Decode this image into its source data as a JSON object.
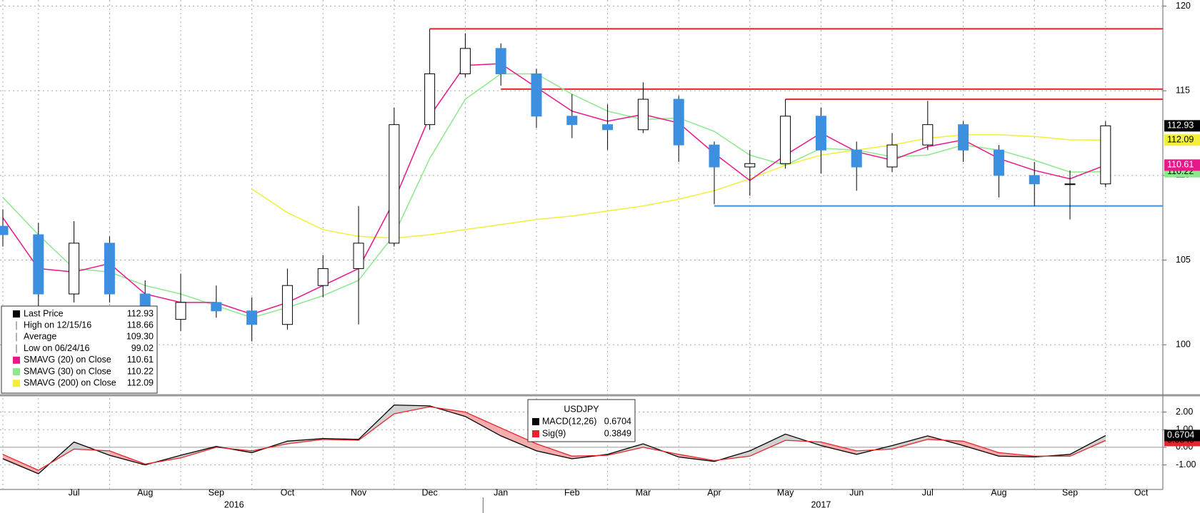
{
  "chart_data": [
    {
      "type": "candlestick",
      "categories": [
        null,
        null,
        "Jul",
        null,
        "Aug",
        null,
        "Sep",
        null,
        "Oct",
        null,
        "Nov",
        null,
        "Dec",
        null,
        "Jan",
        null,
        "Feb",
        null,
        "Mar",
        null,
        "Apr",
        null,
        "May",
        null,
        "Jun",
        null,
        "Jul",
        null,
        "Aug",
        null,
        "Sep",
        null,
        "Oct"
      ],
      "x_groups": [
        {
          "name": "2016",
          "count": 14
        },
        {
          "name": "2017",
          "count": 19
        }
      ],
      "candles": {
        "open": [
          107,
          106.5,
          103,
          106,
          103,
          101.5,
          102.5,
          102,
          101.2,
          103.5,
          104.5,
          106,
          113,
          116,
          117.5,
          116,
          113.5,
          113,
          112.7,
          114.5,
          111.8,
          110.5,
          110.7,
          113.5,
          111.5,
          110.5,
          111.8,
          113,
          111.5,
          110,
          109.5,
          109.5,
          null
        ],
        "high": [
          108,
          107.2,
          107.3,
          106.4,
          103.8,
          104.2,
          103.5,
          102.8,
          104.5,
          105.3,
          108.2,
          114,
          118.66,
          118.4,
          117.8,
          116.3,
          114.8,
          114.2,
          115.5,
          114.7,
          112,
          111.5,
          114.5,
          114,
          112,
          112.5,
          114.4,
          113.2,
          111.8,
          110.8,
          110.3,
          113.2,
          null
        ],
        "low": [
          105.8,
          99.02,
          102.5,
          102.5,
          100.5,
          100.8,
          101.6,
          100.2,
          100.9,
          102.8,
          101.2,
          105.8,
          112.7,
          115.8,
          115.3,
          112.8,
          112.2,
          111.5,
          112.5,
          110.8,
          108.3,
          108.8,
          110.4,
          110.1,
          109.1,
          110.2,
          111.5,
          110.8,
          108.7,
          108.2,
          107.4,
          109.3,
          null
        ],
        "close": [
          106.5,
          103,
          106,
          103,
          101.5,
          102.5,
          102,
          101.2,
          103.5,
          104.5,
          106,
          113,
          116,
          117.5,
          116,
          113.5,
          113,
          112.7,
          114.5,
          111.8,
          110.5,
          110.7,
          113.5,
          111.5,
          110.5,
          111.8,
          113,
          111.5,
          110,
          109.5,
          109.5,
          112.93,
          null
        ],
        "up_color": "#ffffff",
        "down_color": "#3d8fe0"
      },
      "series": [
        {
          "name": "SMAVG (20) on Close",
          "color": "#e8178a",
          "values": [
            107.5,
            104.5,
            104.3,
            104.8,
            103,
            102.5,
            102.5,
            101.8,
            102.5,
            103.5,
            104.5,
            108.5,
            113.5,
            116.5,
            116.6,
            115.2,
            113.8,
            113.2,
            113.6,
            113.1,
            111.3,
            109.7,
            111.2,
            112.5,
            111.4,
            110.9,
            111.7,
            112.1,
            111,
            110.3,
            109.8,
            110.61,
            null
          ]
        },
        {
          "name": "SMAVG (30) on Close",
          "color": "#8de88d",
          "values": [
            108.7,
            106.5,
            104.5,
            104.3,
            103.5,
            103,
            102.3,
            101.6,
            102.2,
            102.9,
            103.8,
            106.5,
            111,
            114.5,
            116,
            116,
            114.8,
            113.8,
            113.3,
            113.4,
            112.6,
            111.2,
            110.6,
            111.6,
            111.5,
            111.1,
            111.2,
            111.8,
            111.5,
            110.9,
            110.2,
            110.22,
            null
          ]
        },
        {
          "name": "SMAVG (200) on Close",
          "color": "#f2ef3a",
          "values": [
            null,
            null,
            null,
            null,
            null,
            null,
            null,
            109.2,
            107.8,
            106.8,
            106.4,
            106.3,
            106.5,
            106.8,
            107.1,
            107.4,
            107.6,
            107.9,
            108.2,
            108.6,
            109.1,
            109.8,
            110.6,
            111.2,
            111.5,
            111.8,
            112.2,
            112.4,
            112.4,
            112.3,
            112.1,
            112.09,
            null
          ]
        }
      ],
      "stats": {
        "last": "Last Price",
        "high": "High on 12/15/16",
        "average": "Average",
        "low": "Low on 06/24/16"
      },
      "average": {
        "value": 109.3,
        "label": "109.30"
      },
      "levels": [
        {
          "value": 118.66,
          "from": 12,
          "color": "#e8242b"
        },
        {
          "value": 115.1,
          "from": 14,
          "color": "#e8242b"
        },
        {
          "value": 114.5,
          "from": 22,
          "color": "#e8242b"
        },
        {
          "value": 108.2,
          "from": 20,
          "color": "#3d8fe0"
        }
      ],
      "ylim": [
        97.06,
        120.36
      ],
      "yticks": [
        100,
        105,
        110,
        115,
        120
      ],
      "grid": true
    },
    {
      "type": "macd",
      "title": "USDJPY",
      "series": [
        {
          "name": "MACD(12,26)",
          "color": "#000000",
          "values": [
            -0.65,
            -1.5,
            0.3,
            -0.45,
            -1,
            -0.45,
            0.05,
            -0.3,
            0.35,
            0.5,
            0.45,
            2.4,
            2.35,
            1.75,
            0.65,
            -0.2,
            -0.65,
            -0.4,
            0.2,
            -0.55,
            -0.8,
            -0.2,
            0.75,
            0.1,
            -0.4,
            0.1,
            0.65,
            0.1,
            -0.5,
            -0.55,
            -0.4,
            0.6704,
            null
          ]
        },
        {
          "name": "Sig(9)",
          "color": "#e8242b",
          "values": [
            -0.4,
            -1.3,
            -0.1,
            -0.2,
            -0.95,
            -0.6,
            0,
            -0.2,
            0.2,
            0.45,
            0.4,
            1.9,
            2.3,
            2,
            1.1,
            0.2,
            -0.5,
            -0.45,
            0,
            -0.4,
            -0.75,
            -0.5,
            0.4,
            0.3,
            -0.2,
            -0.1,
            0.45,
            0.35,
            -0.3,
            -0.5,
            -0.5,
            0.3849,
            null
          ]
        }
      ],
      "ylim": [
        -2.39,
        2.83
      ],
      "yticks": [
        {
          "value": -1,
          "label": "-1.00"
        },
        {
          "value": 0,
          "label": "0.00"
        },
        {
          "value": 1,
          "label": "1.00"
        },
        {
          "value": 2,
          "label": "2.00"
        }
      ],
      "grid": true
    }
  ]
}
